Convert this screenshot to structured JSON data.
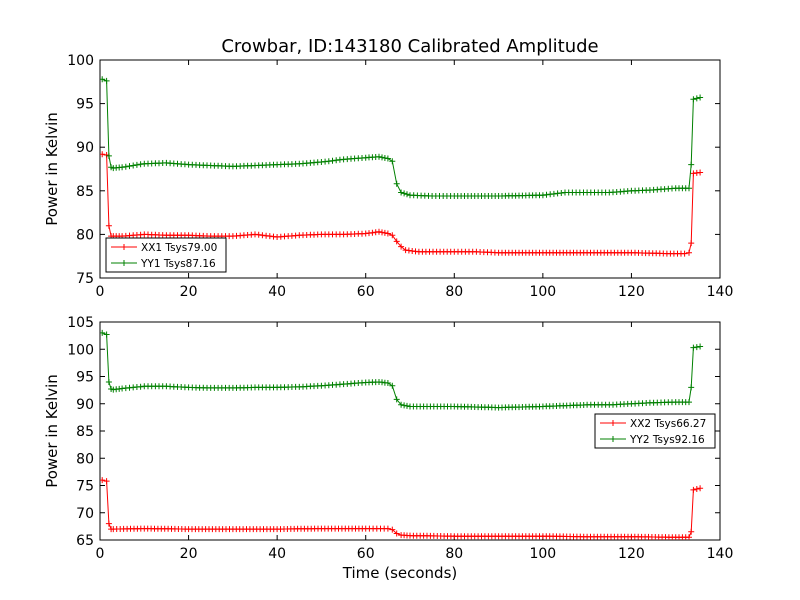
{
  "title": "Crowbar, ID:143180 Calibrated Amplitude",
  "chart_data": [
    {
      "type": "line",
      "title": "Crowbar, ID:143180 Calibrated Amplitude",
      "xlabel": "",
      "ylabel": "Power in Kelvin",
      "xlim": [
        0,
        140
      ],
      "ylim": [
        75,
        100
      ],
      "xticks": [
        "0",
        "20",
        "40",
        "60",
        "80",
        "100",
        "120",
        "140"
      ],
      "yticks": [
        "75",
        "80",
        "85",
        "90",
        "95",
        "100"
      ],
      "legend_position": "lower-left",
      "series": [
        {
          "name": "XX1 Tsys79.00",
          "color": "#ff0000",
          "points": [
            [
              0.5,
              89.2
            ],
            [
              1.5,
              89.1
            ],
            [
              2,
              81
            ],
            [
              2.5,
              79.8
            ],
            [
              3,
              79.8
            ],
            [
              5,
              79.8
            ],
            [
              10,
              80.0
            ],
            [
              15,
              79.9
            ],
            [
              20,
              79.9
            ],
            [
              25,
              79.8
            ],
            [
              30,
              79.8
            ],
            [
              35,
              80.0
            ],
            [
              40,
              79.7
            ],
            [
              45,
              79.9
            ],
            [
              50,
              80.0
            ],
            [
              55,
              80.0
            ],
            [
              60,
              80.1
            ],
            [
              63,
              80.3
            ],
            [
              65,
              80.1
            ],
            [
              66,
              79.9
            ],
            [
              67,
              79.2
            ],
            [
              68,
              78.6
            ],
            [
              69,
              78.2
            ],
            [
              72,
              78.0
            ],
            [
              80,
              78.0
            ],
            [
              85,
              78.0
            ],
            [
              90,
              77.9
            ],
            [
              100,
              77.9
            ],
            [
              110,
              77.9
            ],
            [
              120,
              77.9
            ],
            [
              128,
              77.8
            ],
            [
              132,
              77.8
            ],
            [
              133,
              77.9
            ],
            [
              133.5,
              79
            ],
            [
              134,
              87
            ],
            [
              135.5,
              87.1
            ]
          ]
        },
        {
          "name": "YY1 Tsys87.16",
          "color": "#008000",
          "points": [
            [
              0.5,
              97.8
            ],
            [
              1.5,
              97.6
            ],
            [
              2,
              89
            ],
            [
              2.5,
              87.7
            ],
            [
              3,
              87.6
            ],
            [
              5,
              87.7
            ],
            [
              10,
              88.1
            ],
            [
              15,
              88.2
            ],
            [
              20,
              88.0
            ],
            [
              25,
              87.9
            ],
            [
              30,
              87.8
            ],
            [
              35,
              87.9
            ],
            [
              40,
              88.0
            ],
            [
              45,
              88.1
            ],
            [
              50,
              88.3
            ],
            [
              55,
              88.6
            ],
            [
              60,
              88.8
            ],
            [
              63,
              88.9
            ],
            [
              65,
              88.7
            ],
            [
              66,
              88.4
            ],
            [
              67,
              85.8
            ],
            [
              68,
              84.8
            ],
            [
              70,
              84.5
            ],
            [
              75,
              84.4
            ],
            [
              80,
              84.4
            ],
            [
              90,
              84.4
            ],
            [
              100,
              84.5
            ],
            [
              105,
              84.8
            ],
            [
              110,
              84.8
            ],
            [
              115,
              84.8
            ],
            [
              120,
              85.0
            ],
            [
              125,
              85.1
            ],
            [
              130,
              85.3
            ],
            [
              133,
              85.3
            ],
            [
              133.5,
              88
            ],
            [
              134,
              95.5
            ],
            [
              135.5,
              95.7
            ]
          ]
        }
      ]
    },
    {
      "type": "line",
      "title": "",
      "xlabel": "Time (seconds)",
      "ylabel": "Power in Kelvin",
      "xlim": [
        0,
        140
      ],
      "ylim": [
        65,
        105
      ],
      "xticks": [
        "0",
        "20",
        "40",
        "60",
        "80",
        "100",
        "120",
        "140"
      ],
      "yticks": [
        "65",
        "70",
        "75",
        "80",
        "85",
        "90",
        "95",
        "100",
        "105"
      ],
      "legend_position": "center-right",
      "series": [
        {
          "name": "XX2 Tsys66.27",
          "color": "#ff0000",
          "points": [
            [
              0.5,
              76.0
            ],
            [
              1.5,
              75.8
            ],
            [
              2,
              68
            ],
            [
              2.5,
              67.0
            ],
            [
              3,
              67.0
            ],
            [
              10,
              67.1
            ],
            [
              20,
              67.0
            ],
            [
              30,
              67.0
            ],
            [
              40,
              67.0
            ],
            [
              50,
              67.1
            ],
            [
              60,
              67.1
            ],
            [
              65,
              67.1
            ],
            [
              66,
              66.9
            ],
            [
              67,
              66.2
            ],
            [
              68,
              65.9
            ],
            [
              70,
              65.8
            ],
            [
              80,
              65.7
            ],
            [
              90,
              65.7
            ],
            [
              100,
              65.7
            ],
            [
              110,
              65.6
            ],
            [
              120,
              65.6
            ],
            [
              130,
              65.5
            ],
            [
              133,
              65.5
            ],
            [
              133.5,
              66.5
            ],
            [
              134,
              74.2
            ],
            [
              135.5,
              74.5
            ]
          ]
        },
        {
          "name": "YY2 Tsys92.16",
          "color": "#008000",
          "points": [
            [
              0.5,
              103.0
            ],
            [
              1.5,
              102.7
            ],
            [
              2,
              94
            ],
            [
              2.5,
              92.7
            ],
            [
              3,
              92.6
            ],
            [
              5,
              92.8
            ],
            [
              10,
              93.2
            ],
            [
              15,
              93.2
            ],
            [
              20,
              93.0
            ],
            [
              25,
              92.9
            ],
            [
              30,
              92.9
            ],
            [
              35,
              93.0
            ],
            [
              40,
              93.0
            ],
            [
              45,
              93.1
            ],
            [
              50,
              93.3
            ],
            [
              55,
              93.6
            ],
            [
              60,
              93.9
            ],
            [
              63,
              94.0
            ],
            [
              65,
              93.8
            ],
            [
              66,
              93.3
            ],
            [
              67,
              90.8
            ],
            [
              68,
              89.8
            ],
            [
              70,
              89.5
            ],
            [
              80,
              89.5
            ],
            [
              90,
              89.3
            ],
            [
              100,
              89.5
            ],
            [
              110,
              89.8
            ],
            [
              115,
              89.8
            ],
            [
              120,
              90.0
            ],
            [
              125,
              90.2
            ],
            [
              130,
              90.3
            ],
            [
              133,
              90.3
            ],
            [
              133.5,
              93
            ],
            [
              134,
              100.3
            ],
            [
              135.5,
              100.5
            ]
          ]
        }
      ]
    }
  ]
}
